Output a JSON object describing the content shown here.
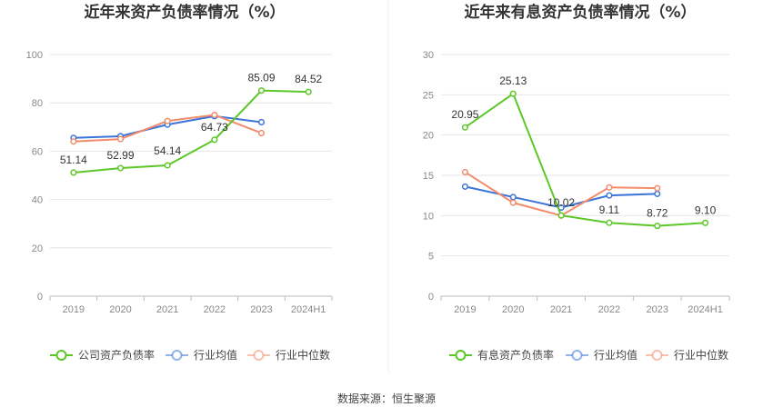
{
  "chart_data": [
    {
      "type": "line",
      "title": "近年来资产负债率情况（%）",
      "categories": [
        "2019",
        "2020",
        "2021",
        "2022",
        "2023",
        "2024H1"
      ],
      "yticks": [
        "0",
        "20",
        "40",
        "60",
        "80",
        "100"
      ],
      "ylim": [
        0,
        100
      ],
      "xlabel": "",
      "ylabel": "",
      "grid": true,
      "legend_position": "bottom",
      "series": [
        {
          "name": "公司资产负债率",
          "color": "#5cc726",
          "values": [
            51.14,
            52.99,
            54.14,
            64.73,
            85.09,
            84.52
          ],
          "labels": [
            "51.14",
            "52.99",
            "54.14",
            "64.73",
            "85.09",
            "84.52"
          ]
        },
        {
          "name": "行业均值",
          "color": "#3b74d8",
          "values": [
            65.5,
            66.2,
            71.0,
            74.5,
            72.0,
            null
          ]
        },
        {
          "name": "行业中位数",
          "color": "#f28c6b",
          "values": [
            64.0,
            65.0,
            72.5,
            75.0,
            67.5,
            null
          ]
        }
      ]
    },
    {
      "type": "line",
      "title": "近年来有息资产负债率情况（%）",
      "categories": [
        "2019",
        "2020",
        "2021",
        "2022",
        "2023",
        "2024H1"
      ],
      "yticks": [
        "0",
        "5",
        "10",
        "15",
        "20",
        "25",
        "30"
      ],
      "ylim": [
        0,
        30
      ],
      "xlabel": "",
      "ylabel": "",
      "grid": true,
      "legend_position": "bottom",
      "series": [
        {
          "name": "有息资产负债率",
          "color": "#5cc726",
          "values": [
            20.95,
            25.13,
            10.02,
            9.11,
            8.72,
            9.1
          ],
          "labels": [
            "20.95",
            "25.13",
            "10.02",
            "9.11",
            "8.72",
            "9.10"
          ]
        },
        {
          "name": "行业均值",
          "color": "#3b74d8",
          "values": [
            13.6,
            12.3,
            11.0,
            12.5,
            12.7,
            null
          ]
        },
        {
          "name": "行业中位数",
          "color": "#f28c6b",
          "values": [
            15.4,
            11.6,
            10.0,
            13.5,
            13.4,
            null
          ]
        }
      ]
    }
  ],
  "source": "数据来源：恒生聚源"
}
